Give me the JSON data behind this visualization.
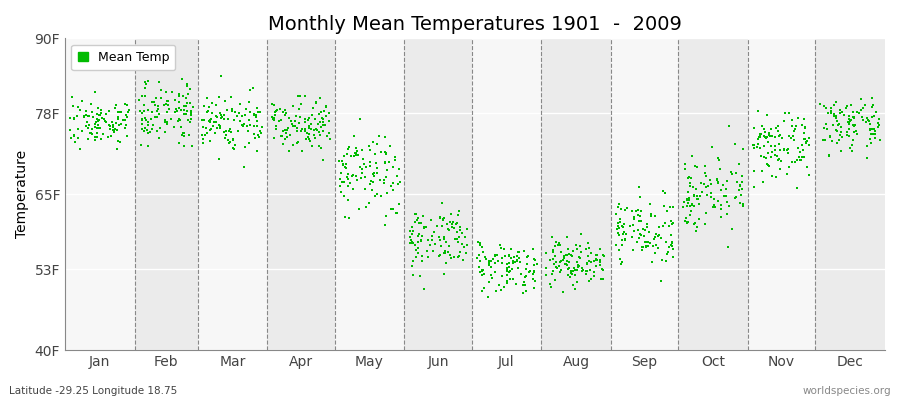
{
  "title": "Monthly Mean Temperatures 1901  -  2009",
  "ylabel": "Temperature",
  "xlabel_bottom_left": "Latitude -29.25 Longitude 18.75",
  "xlabel_bottom_right": "worldspecies.org",
  "ytick_labels": [
    "40F",
    "53F",
    "65F",
    "78F",
    "90F"
  ],
  "ytick_values": [
    40,
    53,
    65,
    78,
    90
  ],
  "ylim": [
    40,
    90
  ],
  "months": [
    "Jan",
    "Feb",
    "Mar",
    "Apr",
    "May",
    "Jun",
    "Jul",
    "Aug",
    "Sep",
    "Oct",
    "Nov",
    "Dec"
  ],
  "dot_color": "#00BB00",
  "background_color": "#FFFFFF",
  "band_color_odd": "#EBEBEB",
  "band_color_even": "#F7F7F7",
  "legend_label": "Mean Temp",
  "title_fontsize": 14,
  "axis_fontsize": 10,
  "tick_fontsize": 10,
  "month_mean_temps": [
    76.5,
    78.5,
    76.5,
    76.5,
    68.0,
    58.0,
    53.5,
    54.0,
    59.0,
    65.5,
    72.5,
    76.0
  ],
  "month_std_temps": [
    1.8,
    2.5,
    2.5,
    2.0,
    3.5,
    2.5,
    2.0,
    2.0,
    2.5,
    3.0,
    2.5,
    2.0
  ],
  "n_years": 109,
  "seed": 7
}
